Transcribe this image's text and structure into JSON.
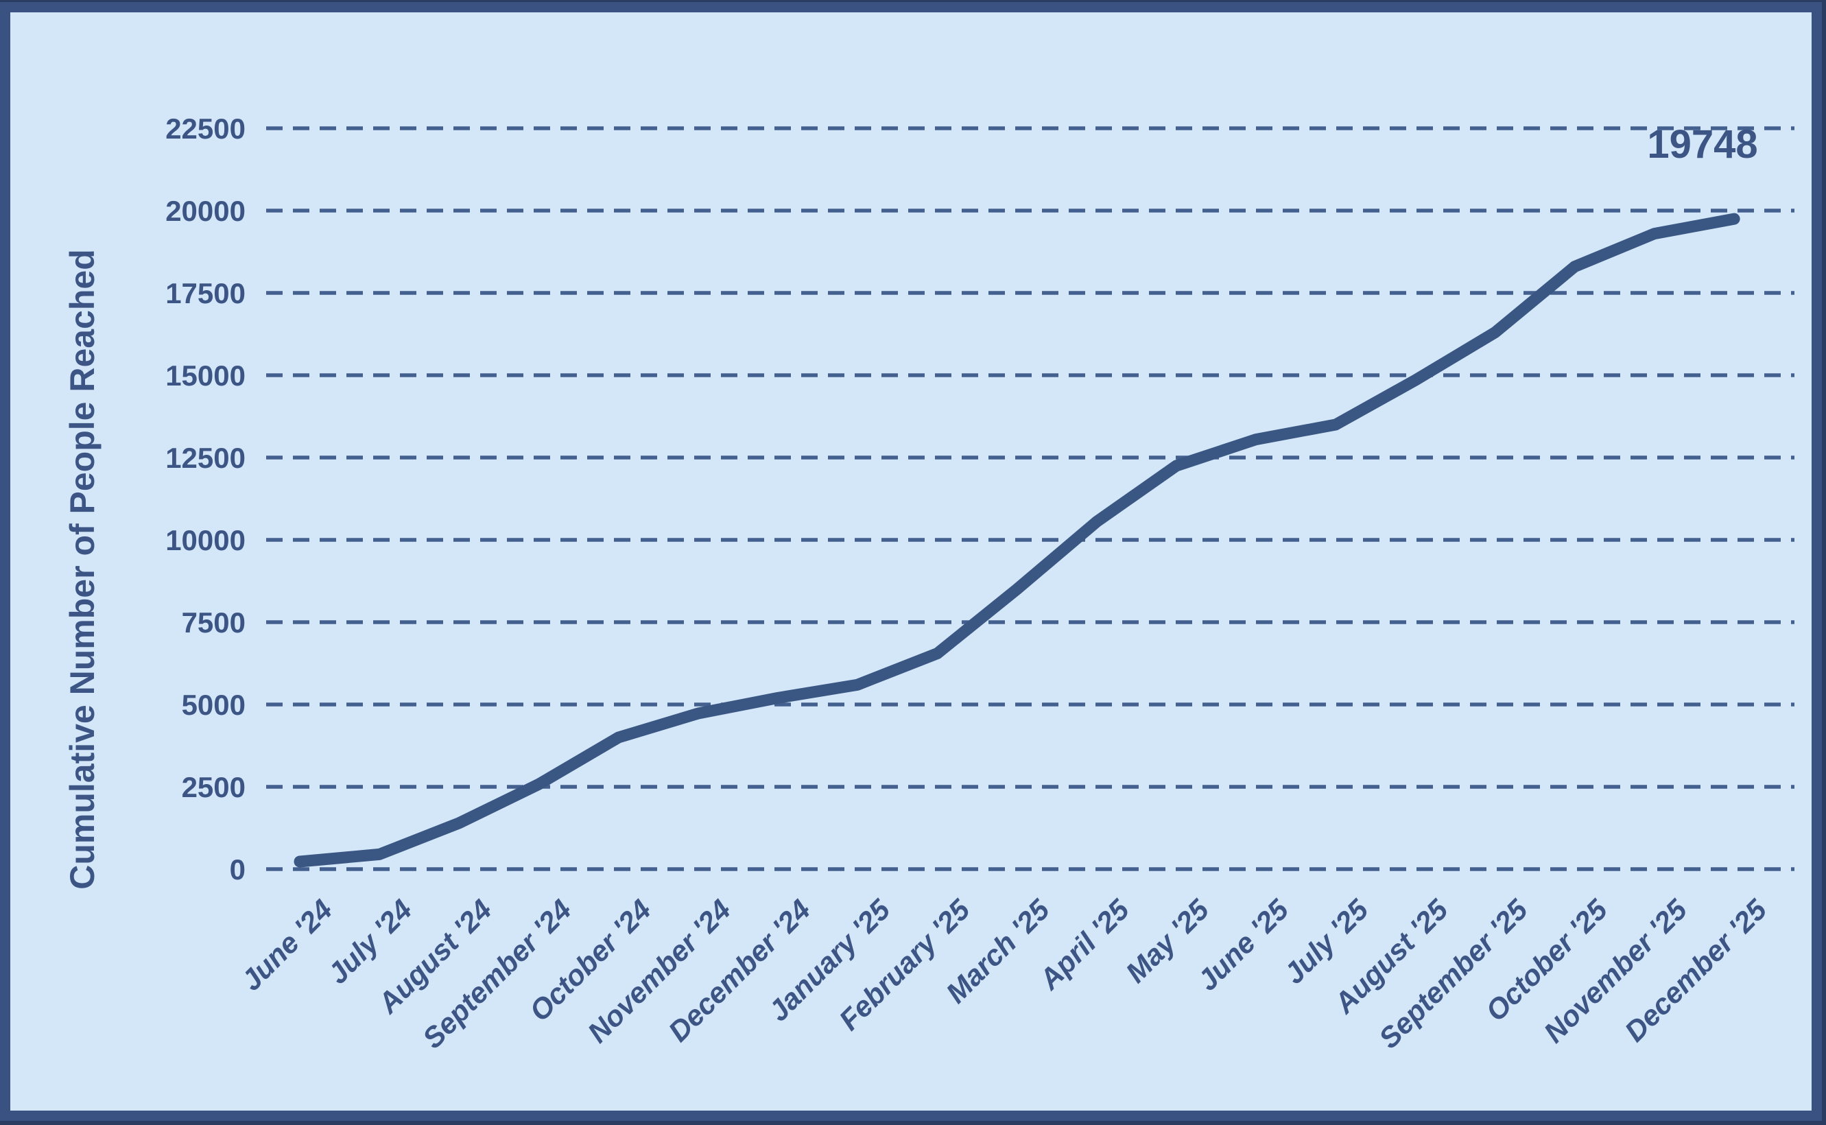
{
  "chart_data": {
    "type": "line",
    "title": "",
    "xlabel": "",
    "ylabel": "Cumulative Number of People Reached",
    "categories": [
      "June '24",
      "July '24",
      "August '24",
      "September '24",
      "October '24",
      "November '24",
      "December '24",
      "January '25",
      "February '25",
      "March '25",
      "April '25",
      "May '25",
      "June '25",
      "July '25",
      "August '25",
      "September '25",
      "October '25",
      "November '25",
      "December '25"
    ],
    "values": [
      230,
      450,
      1400,
      2580,
      4000,
      4730,
      5200,
      5600,
      6550,
      8500,
      10550,
      12250,
      13050,
      13500,
      14850,
      16300,
      18300,
      19300,
      19748
    ],
    "yticks": [
      0,
      2500,
      5000,
      7500,
      10000,
      12500,
      15000,
      17500,
      20000,
      22500
    ],
    "ylim": [
      0,
      22500
    ],
    "grid": "horizontal-dashed",
    "legend_position": "none",
    "final_value_label": "19748"
  },
  "colors": {
    "background": "#d3e7f8",
    "frame": "#3a5282",
    "frame_edge": "#2b3c63",
    "line": "#3a5683",
    "grid": "#44608f",
    "text": "#3c5584"
  }
}
